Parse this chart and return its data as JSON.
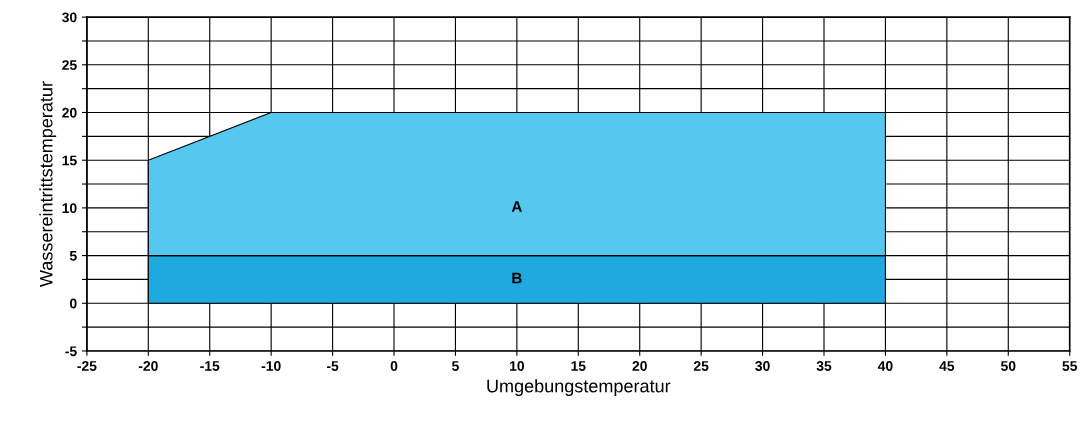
{
  "chart_data": {
    "type": "area",
    "stacked": true,
    "xlabel": "Umgebungstemperatur",
    "ylabel": "Wassereintrittstemperatur",
    "x": [
      -20,
      -10,
      40
    ],
    "series": [
      {
        "name": "B",
        "color": "#1fa9e1",
        "values": [
          5,
          5,
          5
        ]
      },
      {
        "name": "A",
        "color": "#56c8ef",
        "values": [
          10,
          15,
          15
        ]
      }
    ],
    "xlim": [
      -25,
      55
    ],
    "xticks": [
      -25,
      -20,
      -15,
      -10,
      -5,
      0,
      5,
      10,
      15,
      20,
      25,
      30,
      35,
      40,
      45,
      50,
      55
    ],
    "ylim": [
      -5,
      30
    ],
    "yticks": [
      -5,
      {
        "value": -2.5,
        "label": null
      },
      0,
      {
        "value": 2.5,
        "label": null
      },
      5,
      {
        "value": 7.5,
        "label": null
      },
      10,
      {
        "value": 12.5,
        "label": null
      },
      15,
      {
        "value": 17.5,
        "label": null
      },
      20,
      {
        "value": 22.5,
        "label": null
      },
      25,
      {
        "value": 27.5,
        "label": null
      },
      30
    ],
    "grid": true
  }
}
